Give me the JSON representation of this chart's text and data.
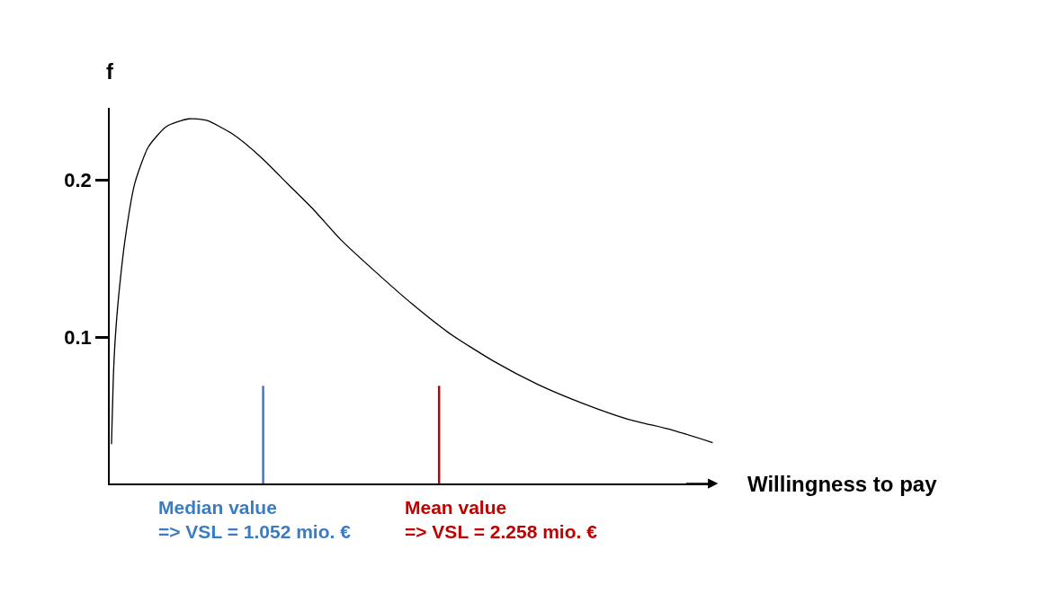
{
  "chart_data": {
    "type": "line",
    "xlabel": "Willingness to pay",
    "ylabel": "f",
    "x": [
      0.012,
      0.025,
      0.037,
      0.061,
      0.111,
      0.172,
      0.264,
      0.387,
      0.541,
      0.663,
      0.848,
      1.032,
      1.216,
      1.4,
      1.585,
      1.83,
      2.076,
      2.322,
      2.629,
      2.936,
      3.243,
      3.55,
      3.857,
      4.134
    ],
    "series": [
      {
        "color": "#000000",
        "values": [
          0.032,
          0.075,
          0.098,
          0.126,
          0.166,
          0.198,
          0.221,
          0.234,
          0.239,
          0.238,
          0.229,
          0.215,
          0.198,
          0.181,
          0.162,
          0.141,
          0.121,
          0.103,
          0.085,
          0.07,
          0.058,
          0.048,
          0.041,
          0.033
        ]
      }
    ],
    "xlim": [
      0,
      4.15
    ],
    "ylim": [
      0.007,
      0.246
    ],
    "yticks": [
      0.1,
      0.2
    ],
    "tick_labels": "y",
    "grid": false,
    "marker": "none",
    "line_style": "solid",
    "ref_lines": [
      {
        "axis": "x",
        "value": 1.052,
        "label": "Median value\n=> VSL = 1.052 mio. €",
        "color": "#3a7cc3"
      },
      {
        "axis": "x",
        "value": 2.258,
        "label": "Mean value\n=> VSL = 2.258 mio. €",
        "color": "#c00000"
      }
    ]
  }
}
